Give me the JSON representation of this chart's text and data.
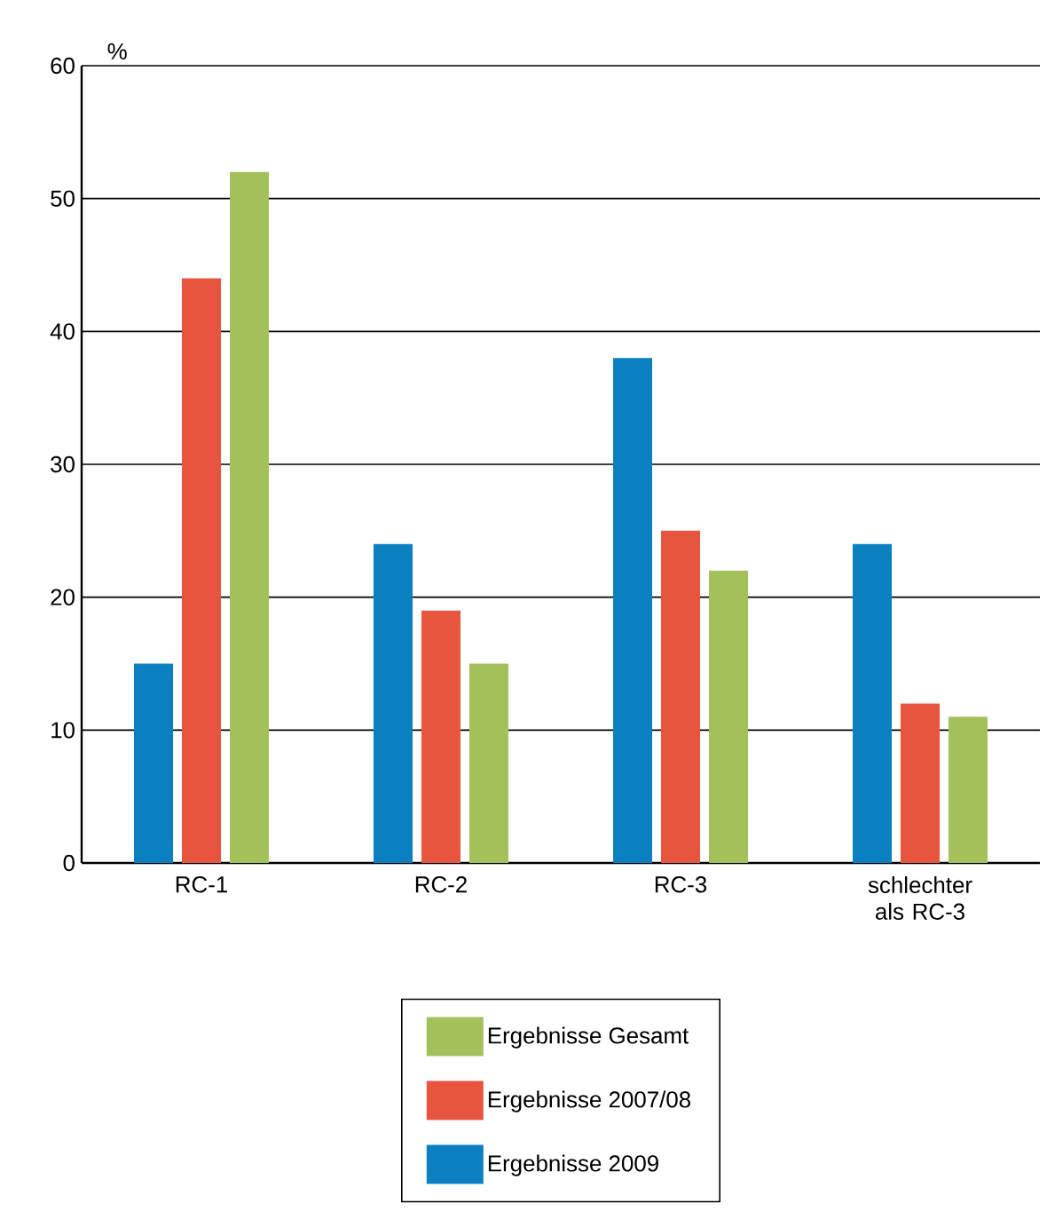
{
  "chart_data": {
    "type": "bar",
    "ylabel": "%",
    "categories": [
      "RC-1",
      "RC-2",
      "RC-3",
      "schlechter als RC-3"
    ],
    "series": [
      {
        "name": "Ergebnisse 2009",
        "color": "#0b80c0",
        "values": [
          15,
          24,
          38,
          24
        ]
      },
      {
        "name": "Ergebnisse 2007/08",
        "color": "#e8553e",
        "values": [
          44,
          19,
          25,
          12
        ]
      },
      {
        "name": "Ergebnisse Gesamt",
        "color": "#a4c05b",
        "values": [
          52,
          15,
          22,
          11
        ]
      }
    ],
    "ylim": [
      0,
      60
    ],
    "yticks": [
      0,
      10,
      20,
      30,
      40,
      50,
      60
    ],
    "grid": "y",
    "legend": "bottom"
  }
}
